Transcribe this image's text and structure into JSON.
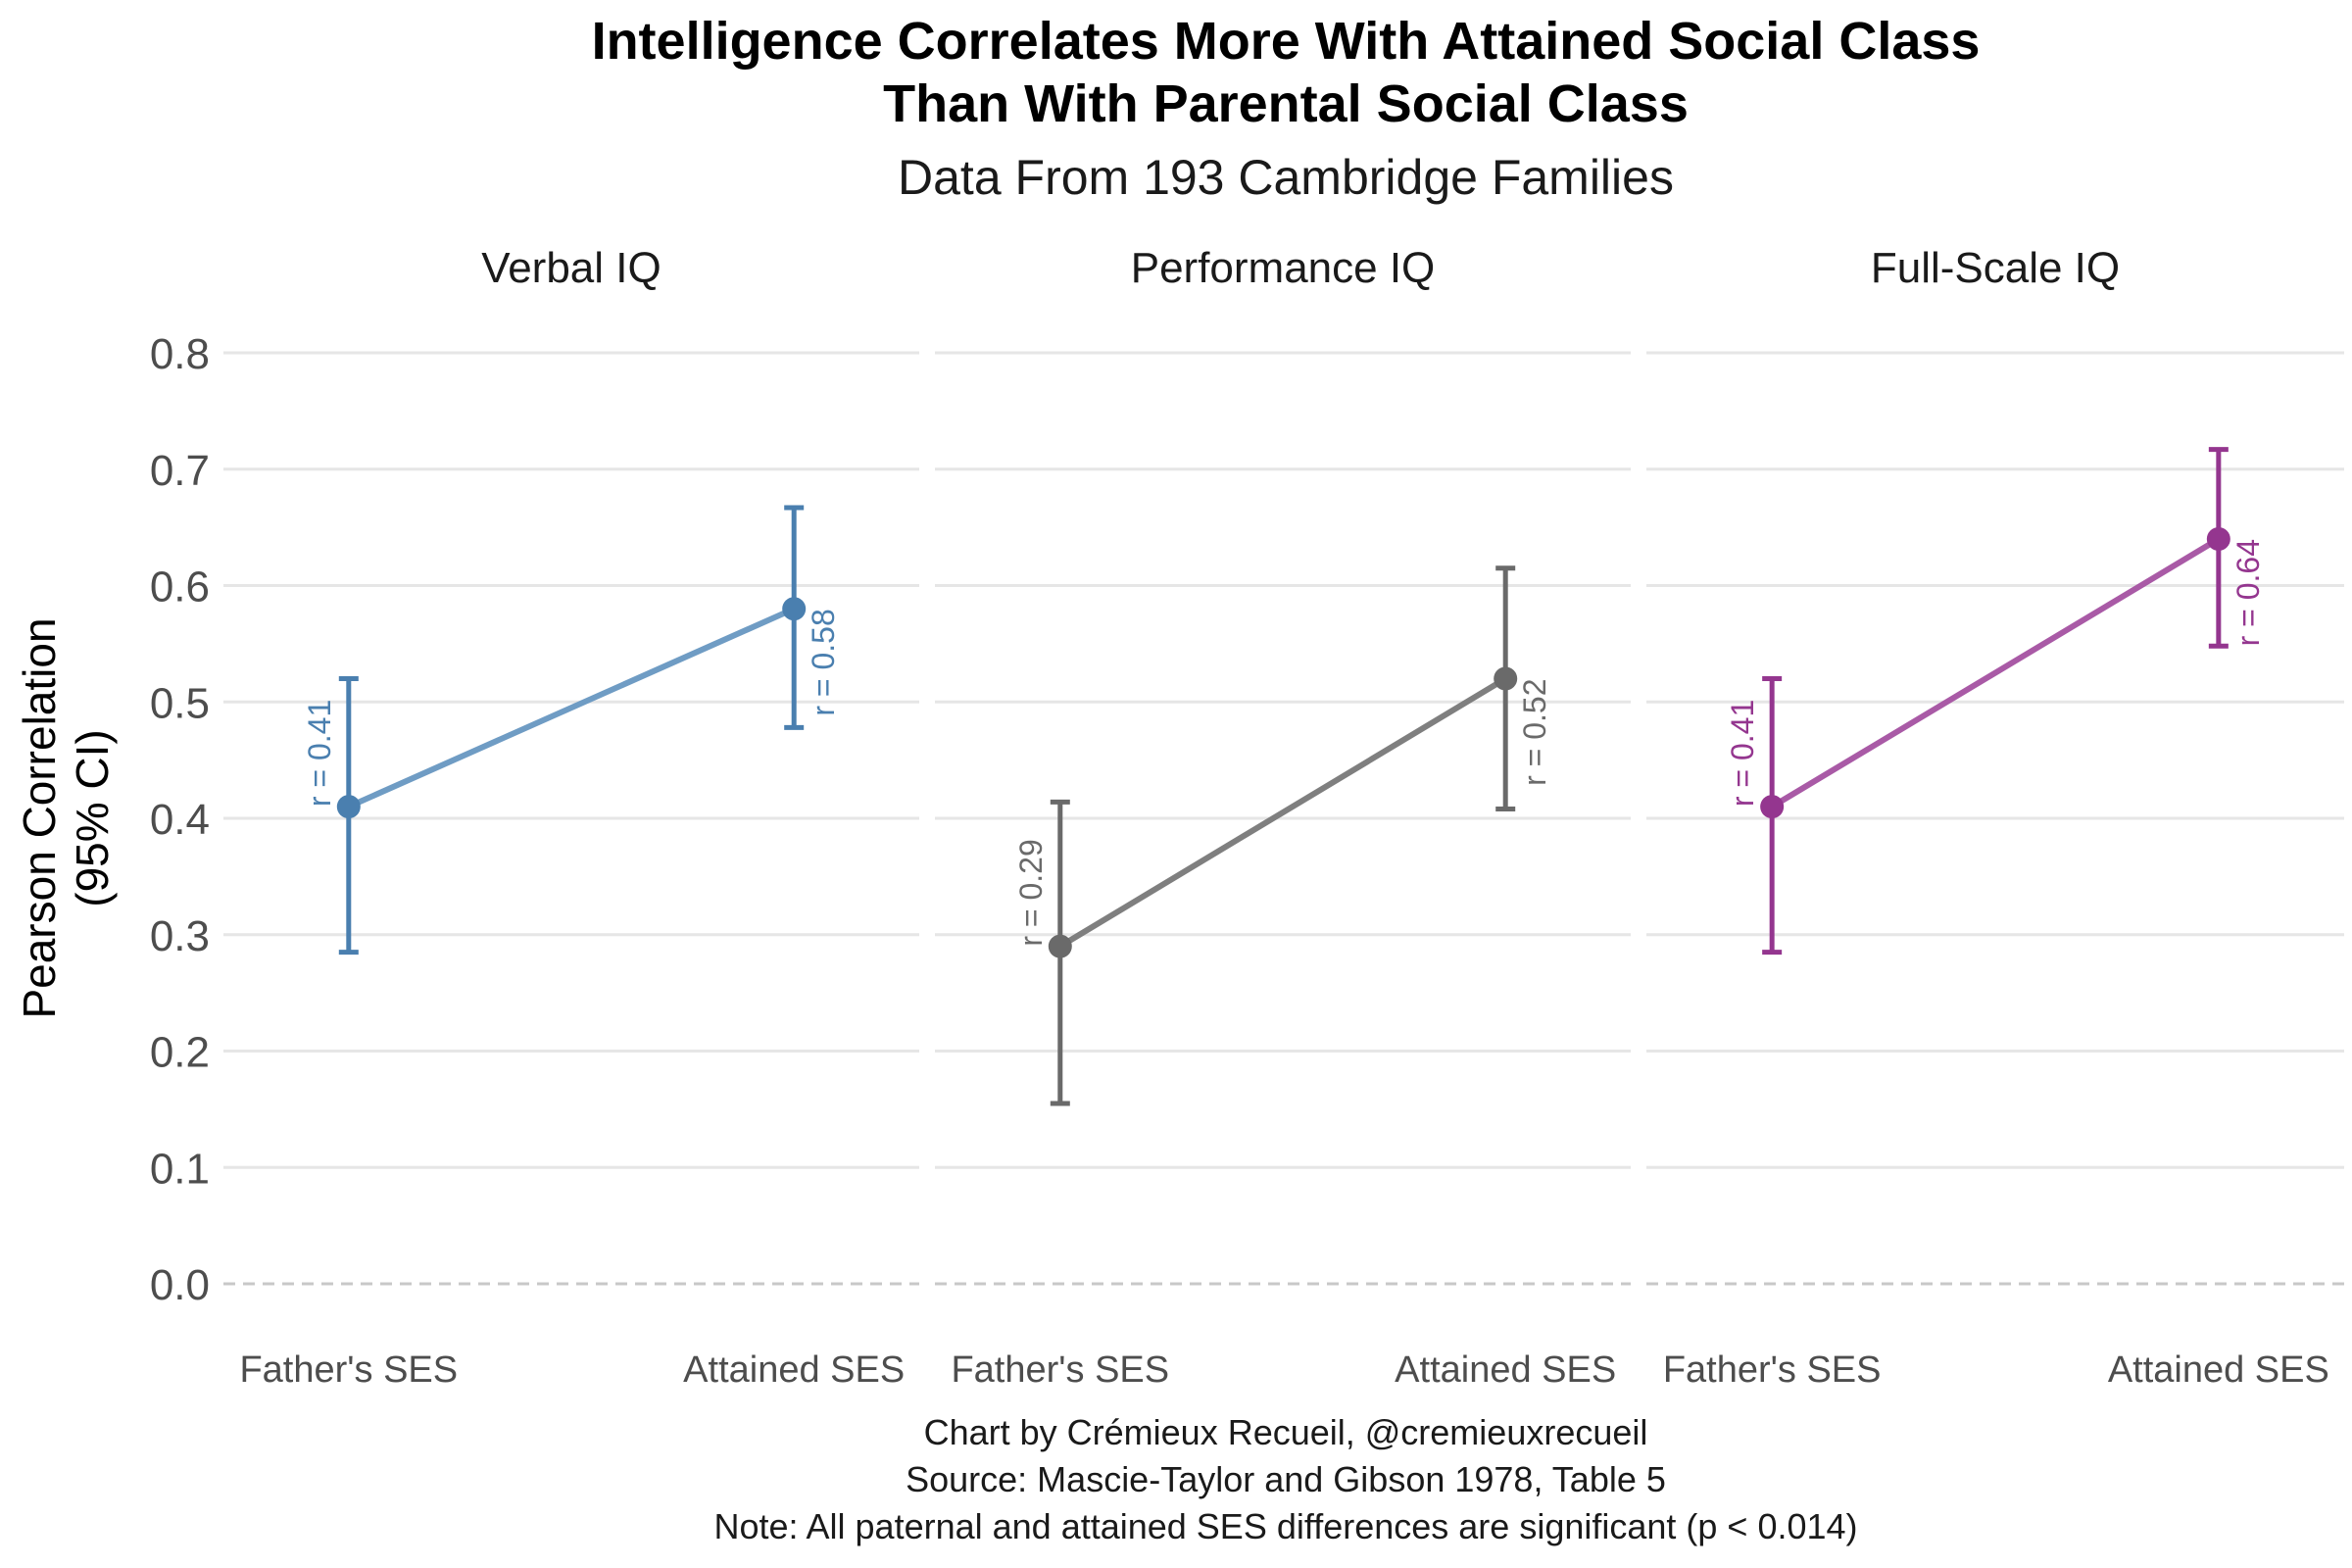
{
  "chart_data": {
    "type": "line",
    "title": "Intelligence Correlates More With Attained Social Class",
    "title_line2": "Than With Parental Social Class",
    "subtitle": "Data From 193 Cambridge Families",
    "ylabel": "Pearson Correlation",
    "ylabel_line2": "(95% CI)",
    "ylim": [
      0,
      0.8
    ],
    "yticks": [
      "0.0",
      "0.1",
      "0.2",
      "0.3",
      "0.4",
      "0.5",
      "0.6",
      "0.7",
      "0.8"
    ],
    "categories": [
      "Father's SES",
      "Attained SES"
    ],
    "panels": [
      {
        "name": "Verbal IQ",
        "color": "#4a7faf",
        "line_color": "#6f9cc4",
        "values": [
          0.41,
          0.58
        ],
        "ci_low": [
          0.285,
          0.478
        ],
        "ci_high": [
          0.52,
          0.667
        ],
        "labels": [
          "r = 0.41",
          "r = 0.58"
        ]
      },
      {
        "name": "Performance IQ",
        "color": "#6a6a6a",
        "line_color": "#7f7f7f",
        "values": [
          0.29,
          0.52
        ],
        "ci_low": [
          0.155,
          0.408
        ],
        "ci_high": [
          0.414,
          0.615
        ],
        "labels": [
          "r = 0.29",
          "r = 0.52"
        ]
      },
      {
        "name": "Full-Scale IQ",
        "color": "#94368f",
        "line_color": "#a95aa6",
        "values": [
          0.41,
          0.64
        ],
        "ci_low": [
          0.285,
          0.548
        ],
        "ci_high": [
          0.52,
          0.717
        ],
        "labels": [
          "r = 0.41",
          "r = 0.64"
        ]
      }
    ],
    "caption": [
      "Chart by Crémieux Recueil, @cremieuxrecueil",
      "Source: Mascie-Taylor and Gibson 1978, Table 5",
      "Note: All paternal and attained SES differences are significant (p < 0.014)"
    ]
  }
}
